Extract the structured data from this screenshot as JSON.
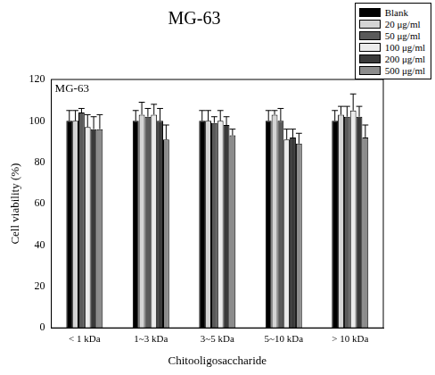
{
  "chart_data": {
    "type": "bar",
    "title": "MG-63",
    "annotation": "MG-63",
    "x_label": "Chitooligosaccharide",
    "y_label": "Cell viability (%)",
    "categories": [
      "< 1 kDa",
      "1~3 kDa",
      "3~5 kDa",
      "5~10 kDa",
      "> 10 kDa"
    ],
    "series": [
      {
        "name": "Blank",
        "color": "#000000",
        "values": [
          100,
          100,
          100,
          100,
          100
        ],
        "errors": [
          5,
          5,
          5,
          5,
          5
        ]
      },
      {
        "name": "20 μg/ml",
        "color": "#d4d4d4",
        "values": [
          100,
          103,
          100,
          103,
          103
        ],
        "errors": [
          5,
          6,
          5,
          2,
          4
        ]
      },
      {
        "name": "50 μg/ml",
        "color": "#5a5a5a",
        "values": [
          104,
          102,
          99,
          100,
          102
        ],
        "errors": [
          2,
          4,
          3,
          6,
          5
        ]
      },
      {
        "name": "100 μg/ml",
        "color": "#ececec",
        "values": [
          97,
          103,
          100,
          91,
          105
        ],
        "errors": [
          6,
          5,
          5,
          5,
          8
        ]
      },
      {
        "name": "200 μg/ml",
        "color": "#3a3a3a",
        "values": [
          96,
          100,
          98,
          92,
          102
        ],
        "errors": [
          6,
          6,
          4,
          4,
          5
        ]
      },
      {
        "name": "500 μg/ml",
        "color": "#8c8c8c",
        "values": [
          96,
          91,
          93,
          89,
          92
        ],
        "errors": [
          7,
          7,
          3,
          5,
          6
        ]
      }
    ],
    "ylim": [
      0,
      120
    ],
    "yticks": [
      0,
      20,
      40,
      60,
      80,
      100,
      120
    ],
    "grid": false,
    "legend": "upper right"
  }
}
